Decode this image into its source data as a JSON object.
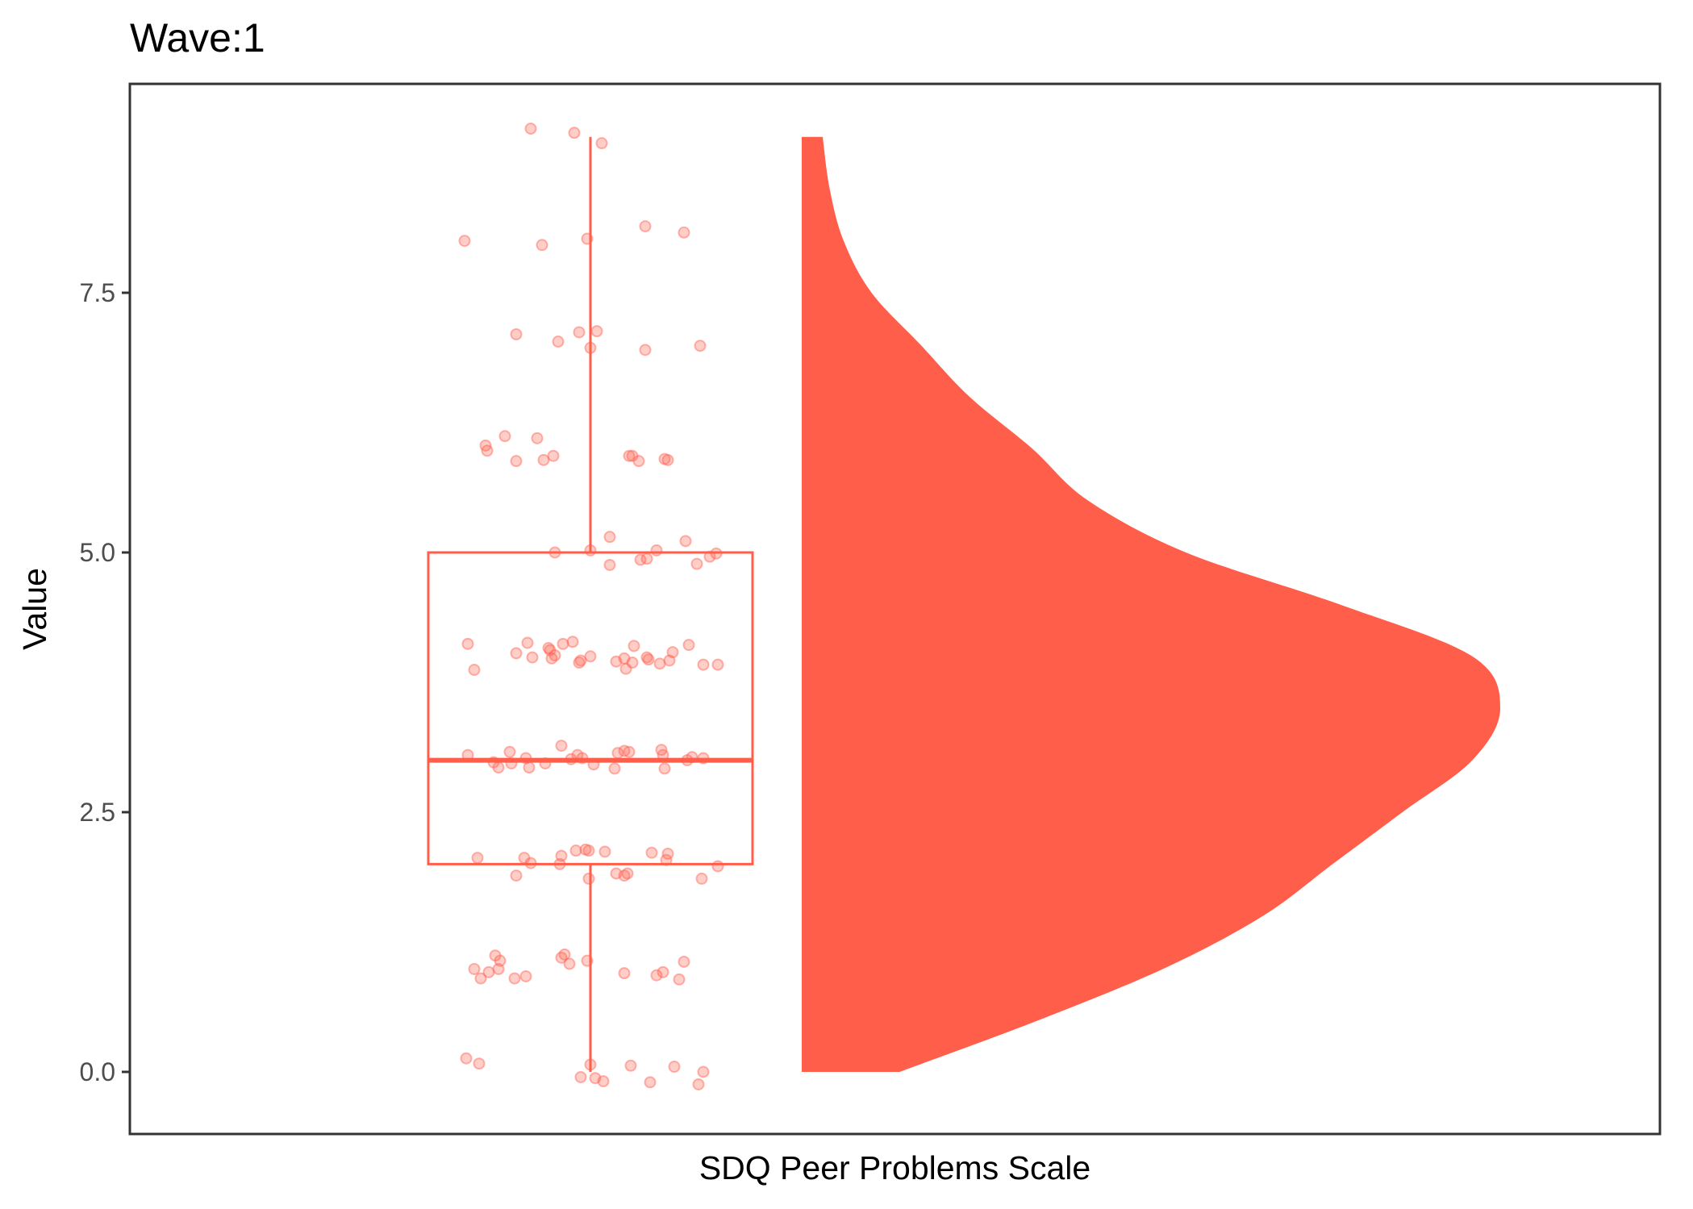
{
  "chart_data": {
    "type": "raincloud",
    "title": "Wave:1",
    "xlabel": "SDQ Peer Problems Scale",
    "ylabel": "Value",
    "ylim": [
      -0.58,
      9.56
    ],
    "yticks": [
      0.0,
      2.5,
      5.0,
      7.5
    ],
    "ytick_labels": [
      "0.0",
      "2.5",
      "5.0",
      "7.5"
    ],
    "grid": false,
    "color": "#FF5E4B",
    "boxplot": {
      "min": 0,
      "q1": 2,
      "median": 3,
      "q3": 5,
      "max": 9
    },
    "violin_density": [
      [
        0.0,
        0.14
      ],
      [
        0.5,
        0.34
      ],
      [
        1.0,
        0.52
      ],
      [
        1.5,
        0.66
      ],
      [
        2.0,
        0.76
      ],
      [
        2.5,
        0.86
      ],
      [
        3.0,
        0.96
      ],
      [
        3.5,
        1.0
      ],
      [
        4.0,
        0.96
      ],
      [
        4.5,
        0.77
      ],
      [
        5.0,
        0.55
      ],
      [
        5.5,
        0.41
      ],
      [
        6.0,
        0.33
      ],
      [
        6.5,
        0.24
      ],
      [
        7.0,
        0.17
      ],
      [
        7.5,
        0.1
      ],
      [
        8.0,
        0.06
      ],
      [
        8.5,
        0.04
      ],
      [
        9.0,
        0.03
      ]
    ],
    "points": [
      [
        -0.37,
        9.08
      ],
      [
        -0.1,
        9.04
      ],
      [
        0.07,
        8.94
      ],
      [
        -0.78,
        8.0
      ],
      [
        -0.3,
        7.96
      ],
      [
        -0.02,
        8.02
      ],
      [
        0.34,
        8.14
      ],
      [
        0.58,
        8.08
      ],
      [
        -0.46,
        7.1
      ],
      [
        -0.2,
        7.03
      ],
      [
        -0.07,
        7.12
      ],
      [
        0.0,
        6.97
      ],
      [
        0.04,
        7.13
      ],
      [
        0.34,
        6.95
      ],
      [
        0.68,
        6.99
      ],
      [
        -0.65,
        6.03
      ],
      [
        -0.64,
        5.98
      ],
      [
        -0.53,
        6.12
      ],
      [
        -0.46,
        5.88
      ],
      [
        -0.33,
        6.1
      ],
      [
        -0.29,
        5.89
      ],
      [
        -0.23,
        5.93
      ],
      [
        0.24,
        5.93
      ],
      [
        0.26,
        5.93
      ],
      [
        0.3,
        5.88
      ],
      [
        0.46,
        5.9
      ],
      [
        0.48,
        5.89
      ],
      [
        -0.22,
        5.0
      ],
      [
        0.0,
        5.02
      ],
      [
        0.12,
        5.15
      ],
      [
        0.12,
        4.88
      ],
      [
        0.31,
        4.93
      ],
      [
        0.35,
        4.94
      ],
      [
        0.41,
        5.02
      ],
      [
        0.59,
        5.11
      ],
      [
        0.66,
        4.89
      ],
      [
        0.74,
        4.96
      ],
      [
        0.78,
        4.99
      ],
      [
        -0.76,
        4.12
      ],
      [
        -0.72,
        3.87
      ],
      [
        -0.46,
        4.03
      ],
      [
        -0.39,
        4.13
      ],
      [
        -0.36,
        3.99
      ],
      [
        -0.26,
        4.08
      ],
      [
        -0.25,
        4.06
      ],
      [
        -0.24,
        3.98
      ],
      [
        -0.22,
        4.01
      ],
      [
        -0.17,
        4.12
      ],
      [
        -0.11,
        4.14
      ],
      [
        -0.07,
        3.94
      ],
      [
        -0.06,
        3.96
      ],
      [
        0.0,
        4.0
      ],
      [
        0.16,
        3.95
      ],
      [
        0.21,
        3.98
      ],
      [
        0.22,
        3.88
      ],
      [
        0.26,
        3.94
      ],
      [
        0.27,
        4.1
      ],
      [
        0.35,
        3.99
      ],
      [
        0.36,
        3.97
      ],
      [
        0.43,
        3.93
      ],
      [
        0.49,
        3.96
      ],
      [
        0.51,
        4.04
      ],
      [
        0.61,
        4.11
      ],
      [
        0.7,
        3.92
      ],
      [
        0.79,
        3.92
      ],
      [
        -0.76,
        3.05
      ],
      [
        -0.6,
        2.98
      ],
      [
        -0.57,
        2.93
      ],
      [
        -0.5,
        3.08
      ],
      [
        -0.49,
        2.97
      ],
      [
        -0.4,
        3.02
      ],
      [
        -0.38,
        2.93
      ],
      [
        -0.28,
        2.97
      ],
      [
        -0.18,
        3.14
      ],
      [
        -0.12,
        3.01
      ],
      [
        -0.08,
        3.05
      ],
      [
        -0.05,
        3.02
      ],
      [
        0.02,
        2.96
      ],
      [
        0.15,
        2.92
      ],
      [
        0.17,
        3.07
      ],
      [
        0.21,
        3.09
      ],
      [
        0.24,
        3.08
      ],
      [
        0.44,
        3.1
      ],
      [
        0.46,
        2.92
      ],
      [
        0.45,
        3.05
      ],
      [
        0.6,
        3.0
      ],
      [
        0.63,
        3.03
      ],
      [
        0.7,
        3.02
      ],
      [
        -0.7,
        2.06
      ],
      [
        -0.46,
        1.89
      ],
      [
        -0.41,
        2.06
      ],
      [
        -0.37,
        2.01
      ],
      [
        -0.18,
        2.08
      ],
      [
        -0.19,
        2.0
      ],
      [
        -0.09,
        2.13
      ],
      [
        -0.03,
        2.14
      ],
      [
        -0.01,
        2.13
      ],
      [
        -0.01,
        1.86
      ],
      [
        0.09,
        2.12
      ],
      [
        0.16,
        1.91
      ],
      [
        0.21,
        1.89
      ],
      [
        0.23,
        1.91
      ],
      [
        0.38,
        2.11
      ],
      [
        0.47,
        2.04
      ],
      [
        0.48,
        2.1
      ],
      [
        0.69,
        1.86
      ],
      [
        0.79,
        1.98
      ],
      [
        -0.72,
        0.99
      ],
      [
        -0.68,
        0.9
      ],
      [
        -0.63,
        0.96
      ],
      [
        -0.59,
        1.12
      ],
      [
        -0.57,
        0.99
      ],
      [
        -0.56,
        1.07
      ],
      [
        -0.47,
        0.9
      ],
      [
        -0.4,
        0.92
      ],
      [
        -0.18,
        1.1
      ],
      [
        -0.16,
        1.13
      ],
      [
        -0.13,
        1.04
      ],
      [
        -0.02,
        1.07
      ],
      [
        0.21,
        0.95
      ],
      [
        0.41,
        0.93
      ],
      [
        0.45,
        0.96
      ],
      [
        0.55,
        0.89
      ],
      [
        0.58,
        1.06
      ],
      [
        -0.77,
        0.13
      ],
      [
        -0.69,
        0.08
      ],
      [
        -0.06,
        -0.05
      ],
      [
        0.0,
        0.07
      ],
      [
        0.03,
        -0.06
      ],
      [
        0.08,
        -0.09
      ],
      [
        0.25,
        0.06
      ],
      [
        0.37,
        -0.1
      ],
      [
        0.52,
        0.05
      ],
      [
        0.67,
        -0.12
      ],
      [
        0.7,
        0.0
      ]
    ]
  }
}
